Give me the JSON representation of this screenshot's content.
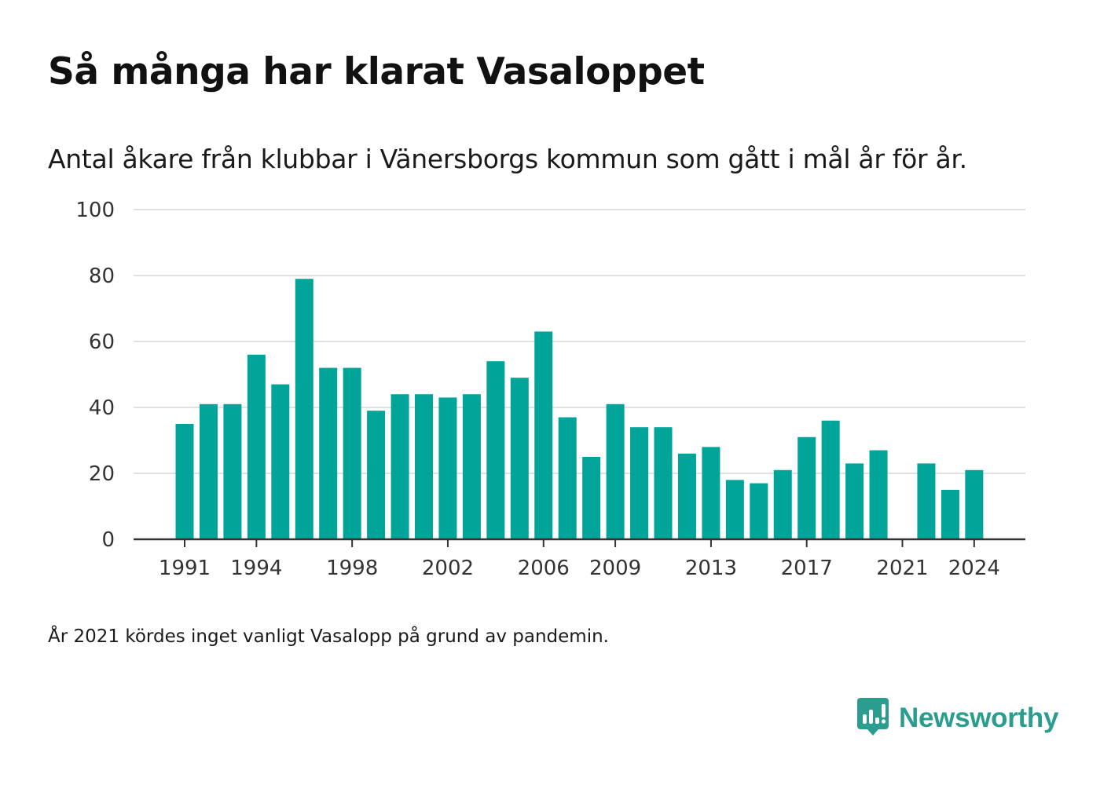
{
  "title": "Så många har klarat Vasaloppet",
  "subtitle": "Antal åkare från klubbar i Vänersborgs kommun som gått i mål år för år.",
  "footnote": "År 2021 kördes inget vanligt Vasalopp på grund av pandemin.",
  "brand": {
    "name": "Newsworthy",
    "icon": "newsworthy-logo-icon",
    "color": "#2a9d8f"
  },
  "chart_data": {
    "type": "bar",
    "color": "#00a499",
    "gridline_color": "#e1e1e1",
    "axis_color": "#333333",
    "grid": true,
    "ylim": [
      0,
      100
    ],
    "y_ticks": [
      0,
      20,
      40,
      60,
      80,
      100
    ],
    "x_tick_labels": [
      "1991",
      "1994",
      "1998",
      "2002",
      "2006",
      "2009",
      "2013",
      "2017",
      "2021",
      "2024"
    ],
    "categories": [
      1991,
      1992,
      1993,
      1994,
      1995,
      1996,
      1997,
      1998,
      1999,
      2000,
      2001,
      2002,
      2003,
      2004,
      2005,
      2006,
      2007,
      2008,
      2009,
      2010,
      2011,
      2012,
      2013,
      2014,
      2015,
      2016,
      2017,
      2018,
      2019,
      2020,
      2021,
      2022,
      2023,
      2024
    ],
    "values": [
      35,
      41,
      41,
      56,
      47,
      79,
      52,
      52,
      39,
      44,
      44,
      43,
      44,
      54,
      49,
      63,
      37,
      25,
      41,
      34,
      34,
      26,
      28,
      18,
      17,
      21,
      31,
      36,
      23,
      27,
      null,
      23,
      15,
      21
    ]
  }
}
